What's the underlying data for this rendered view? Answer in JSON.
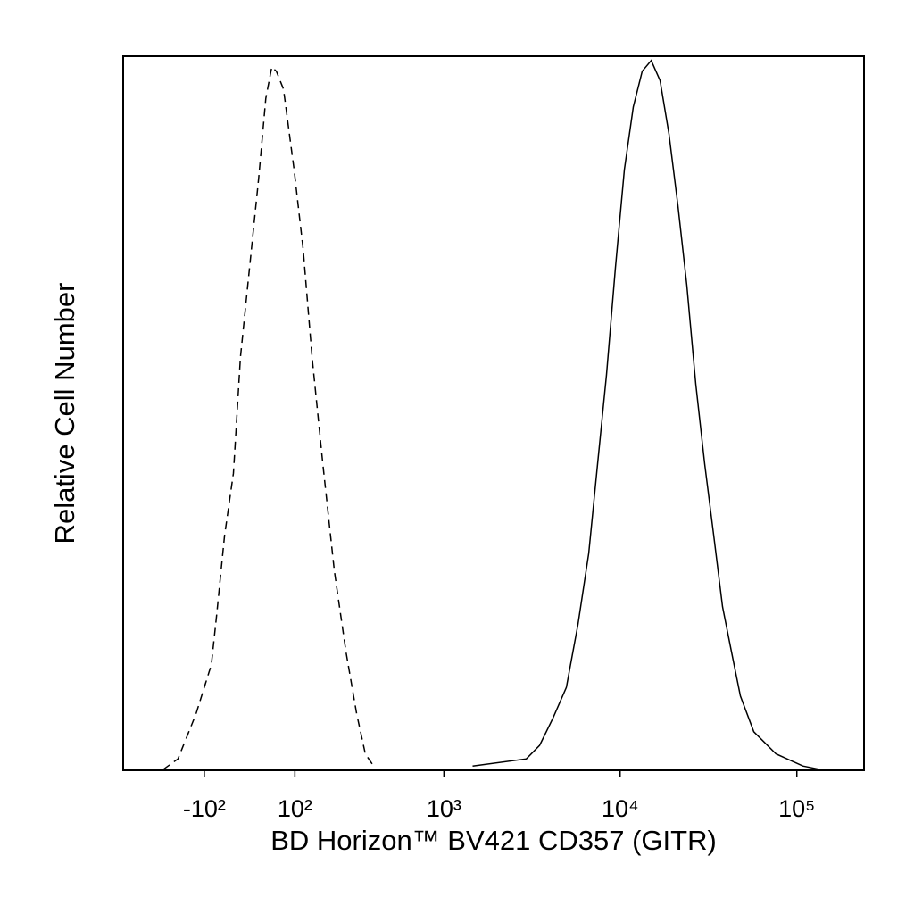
{
  "chart_data": {
    "type": "line",
    "xlabel": "BD Horizon™ BV421 CD357 (GITR)",
    "ylabel": "Relative Cell Number",
    "xscale": "biexponential",
    "xlim": [
      -400,
      240000
    ],
    "xticks": [
      {
        "value": -100,
        "label": "-10²"
      },
      {
        "value": 100,
        "label": "10²"
      },
      {
        "value": 1000,
        "label": "10³"
      },
      {
        "value": 10000,
        "label": "10⁴"
      },
      {
        "value": 100000,
        "label": "10⁵"
      }
    ],
    "ylim": [
      0,
      100
    ],
    "series": [
      {
        "color": "#000000",
        "line_style": "dashed",
        "x": [
          -221,
          -172,
          -121,
          -83,
          -71,
          -53,
          -34,
          -19,
          0,
          19,
          34,
          47,
          57,
          73,
          98,
          121,
          145,
          177,
          215,
          258,
          303,
          344,
          392
        ],
        "values": [
          0.1,
          1.6,
          7.9,
          14.8,
          21.6,
          32.9,
          41.6,
          57.9,
          70.4,
          82.9,
          94.1,
          98.5,
          97.9,
          95.4,
          84.1,
          72.9,
          57.9,
          42.9,
          27.9,
          16.6,
          7.9,
          2.3,
          0.4
        ]
      },
      {
        "color": "#000000",
        "line_style": "solid",
        "x": [
          1459,
          2944,
          3502,
          4166,
          4961,
          5772,
          6640,
          7456,
          8373,
          9408,
          10570,
          11874,
          13334,
          14990,
          16832,
          18904,
          21232,
          23864,
          26800,
          30096,
          33840,
          38000,
          42680,
          47920,
          57040,
          76240,
          108240,
          136480
        ],
        "values": [
          0.6,
          1.6,
          3.5,
          7.3,
          11.6,
          20.4,
          30.4,
          42.9,
          55.4,
          70.4,
          84.1,
          92.9,
          97.9,
          99.4,
          96.6,
          89.1,
          79.1,
          67.9,
          54.1,
          42.9,
          32.9,
          22.9,
          16.6,
          10.4,
          5.4,
          2.3,
          0.6,
          0.1
        ]
      }
    ]
  }
}
